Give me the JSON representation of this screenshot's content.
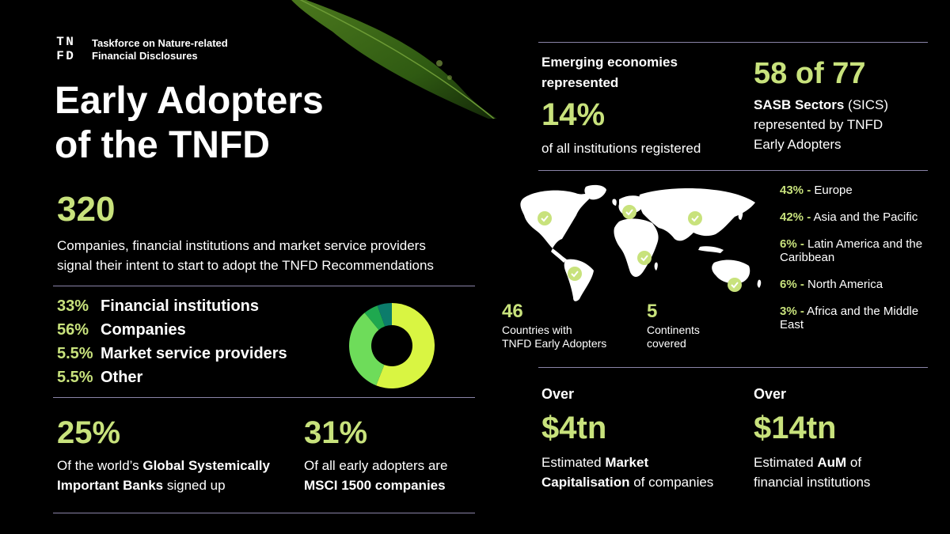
{
  "logo": {
    "letters": [
      "T",
      "N",
      "F",
      "D"
    ],
    "org_line1": "Taskforce on Nature-related",
    "org_line2": "Financial Disclosures"
  },
  "title": {
    "line1": "Early Adopters",
    "line2": "of the TNFD"
  },
  "headline": {
    "number": "320",
    "line1": "Companies, financial institutions and market service providers",
    "line2": "signal their intent to start to adopt the TNFD Recommendations"
  },
  "breakdown": [
    {
      "pct": "33%",
      "label": "Financial institutions"
    },
    {
      "pct": "56%",
      "label": "Companies"
    },
    {
      "pct": "5.5%",
      "label": "Market service providers"
    },
    {
      "pct": "5.5%",
      "label": "Other"
    }
  ],
  "donut": {
    "segments": [
      {
        "value": 56,
        "color": "#d9f542"
      },
      {
        "value": 33,
        "color": "#6edc5a"
      },
      {
        "value": 5.5,
        "color": "#1fa84f"
      },
      {
        "value": 5.5,
        "color": "#0c7c6b"
      }
    ]
  },
  "gsib": {
    "number": "25%",
    "line1_pre": "Of the world’s ",
    "line1_bold": "Global Systemically",
    "line2_bold": "Important Banks",
    "line2_post": " signed up"
  },
  "msci": {
    "number": "31%",
    "line1": "Of all early adopters are",
    "line2_bold": "MSCI 1500 companies"
  },
  "emerging": {
    "heading_line1": "Emerging economies",
    "heading_line2": "represented",
    "number": "14%",
    "caption": "of all institutions registered"
  },
  "sasb": {
    "number": "58 of 77",
    "line1_bold": "SASB Sectors",
    "line1_post": " (SICS)",
    "line2": "represented by TNFD",
    "line3": "Early Adopters"
  },
  "countries": {
    "number": "46",
    "line1": "Countries with",
    "line2": "TNFD Early Adopters"
  },
  "continents": {
    "number": "5",
    "line1": "Continents",
    "line2": "covered"
  },
  "regions": [
    {
      "pct": "43% -",
      "name": " Europe"
    },
    {
      "pct": "42% -",
      "name": " Asia and the Pacific"
    },
    {
      "pct": "6% -",
      "name": " Latin America and the Caribbean"
    },
    {
      "pct": "6% -",
      "name": " North America"
    },
    {
      "pct": "3% -",
      "name": " Africa and the Middle East"
    }
  ],
  "market_cap": {
    "over": "Over",
    "number": "$4tn",
    "line1_pre": "Estimated ",
    "line1_bold": "Market",
    "line2_bold": "Capitalisation",
    "line2_post": " of companies"
  },
  "aum": {
    "over": "Over",
    "number": "$14tn",
    "line1_pre": "Estimated ",
    "line1_bold": "AuM",
    "line1_post": " of",
    "line2": "financial institutions"
  },
  "colors": {
    "accent": "#c8e27c",
    "background": "#000000",
    "rule": "#8a84a8"
  }
}
